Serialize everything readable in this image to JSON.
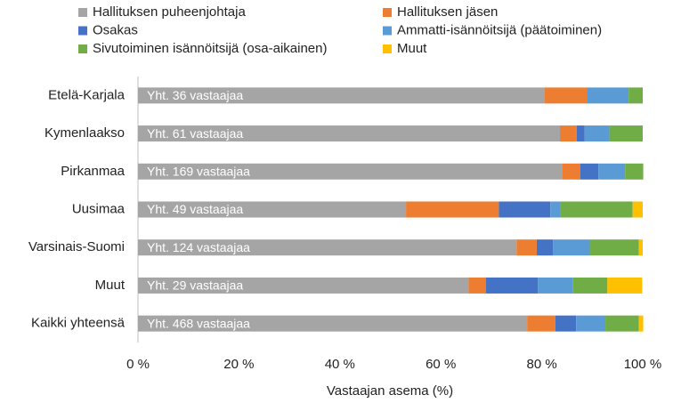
{
  "chart_data": {
    "type": "stacked_bar_horizontal",
    "x_label": "Vastaajan asema (%)",
    "categories": [
      "Etelä-Karjala",
      "Kymenlaakso",
      "Pirkanmaa",
      "Uusimaa",
      "Varsinais-Suomi",
      "Muut",
      "Kaikki yhteensä"
    ],
    "bar_labels": [
      "Yht. 36 vastaajaa",
      "Yht. 61 vastaajaa",
      "Yht. 169 vastaajaa",
      "Yht. 49 vastaajaa",
      "Yht. 124 vastaajaa",
      "Yht. 29 vastaajaa",
      "Yht. 468 vastaajaa"
    ],
    "series": [
      {
        "name": "Hallituksen puheenjohtaja",
        "color": "#a5a5a5",
        "values": [
          80.6,
          83.6,
          84.0,
          53.1,
          75.0,
          65.5,
          77.1
        ]
      },
      {
        "name": "Hallituksen jäsen",
        "color": "#ed7d31",
        "values": [
          8.3,
          3.3,
          3.6,
          18.4,
          4.0,
          3.4,
          5.6
        ]
      },
      {
        "name": "Osakas",
        "color": "#4472c4",
        "values": [
          0,
          1.6,
          3.6,
          10.2,
          3.2,
          10.3,
          4.1
        ]
      },
      {
        "name": "Ammatti-isännöitsijä (päätoiminen)",
        "color": "#5b9bd5",
        "values": [
          8.3,
          4.9,
          5.3,
          2.0,
          7.3,
          6.9,
          5.8
        ]
      },
      {
        "name": "Sivutoiminen isännöitsijä (osa-aikainen)",
        "color": "#70ad47",
        "values": [
          2.8,
          6.6,
          3.6,
          14.3,
          9.7,
          6.9,
          6.6
        ]
      },
      {
        "name": "Muut",
        "color": "#ffc000",
        "values": [
          0,
          0,
          0,
          2.0,
          0.8,
          6.9,
          0.9
        ]
      }
    ],
    "xlim": [
      0,
      100
    ],
    "xticks": [
      {
        "value": 0,
        "label": "0 %"
      },
      {
        "value": 20,
        "label": "20 %"
      },
      {
        "value": 40,
        "label": "40 %"
      },
      {
        "value": 60,
        "label": "60 %"
      },
      {
        "value": 80,
        "label": "80 %"
      },
      {
        "value": 100,
        "label": "100 %"
      }
    ]
  }
}
